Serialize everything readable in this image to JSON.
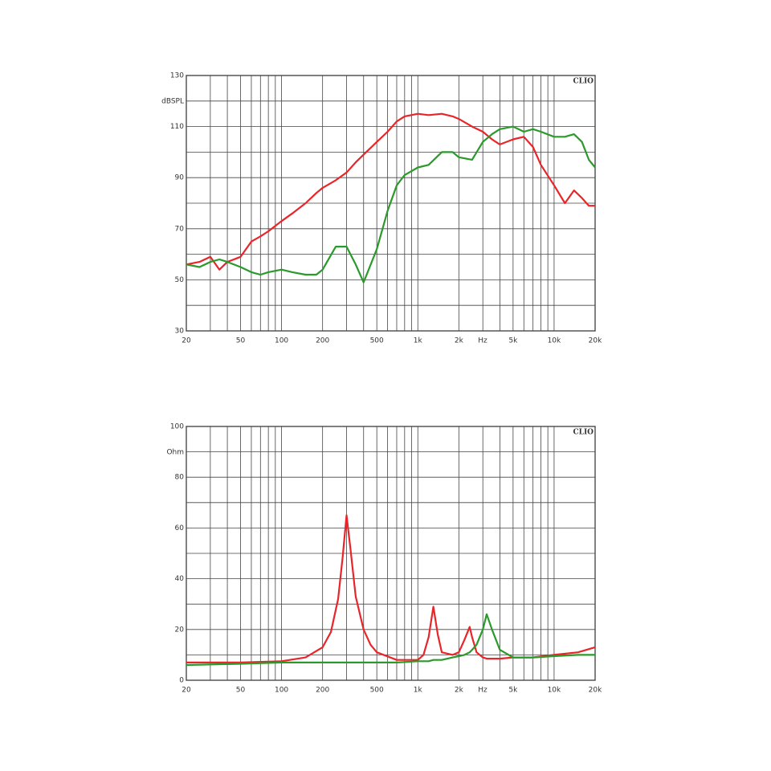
{
  "chart_data": [
    {
      "type": "line",
      "ylabel": "dBSPL",
      "xlabel": "Hz",
      "brand": "CLIO",
      "xscale": "log",
      "grid": true,
      "xlim": [
        20,
        20000
      ],
      "ylim": [
        30,
        130
      ],
      "xticks": [
        20,
        50,
        100,
        200,
        500,
        {
          "value": 1000,
          "label": "1k"
        },
        {
          "value": 2000,
          "label": "2k"
        },
        {
          "value": 5000,
          "label": "5k"
        },
        {
          "value": 10000,
          "label": "10k"
        },
        {
          "value": 20000,
          "label": "20k"
        }
      ],
      "xminor": [
        30,
        40,
        60,
        70,
        80,
        90,
        300,
        400,
        600,
        700,
        800,
        900,
        3000,
        4000,
        6000,
        7000,
        8000,
        9000
      ],
      "yticks": [
        30,
        50,
        70,
        90,
        110,
        130
      ],
      "yminor": [
        40,
        60,
        80,
        100,
        120
      ],
      "x": [
        20,
        25,
        30,
        35,
        40,
        50,
        60,
        70,
        80,
        100,
        120,
        150,
        180,
        200,
        250,
        300,
        350,
        400,
        500,
        600,
        700,
        800,
        1000,
        1200,
        1500,
        1800,
        2000,
        2500,
        3000,
        3500,
        4000,
        5000,
        6000,
        7000,
        8000,
        10000,
        12000,
        14000,
        16000,
        18000,
        20000
      ],
      "series": [
        {
          "color": "#e8262a",
          "values": [
            56,
            57,
            59,
            54,
            57,
            59,
            65,
            67,
            69,
            73,
            76,
            80,
            84,
            86,
            89,
            92,
            96,
            99,
            104,
            108,
            112,
            114,
            115,
            114.5,
            115,
            114,
            113,
            110,
            108,
            105,
            103,
            105,
            106,
            102,
            95,
            87,
            80,
            85,
            82,
            79,
            79
          ]
        },
        {
          "color": "#2a9a2a",
          "values": [
            56,
            55,
            57,
            58,
            57,
            55,
            53,
            52,
            53,
            54,
            53,
            52,
            52,
            54,
            63,
            63,
            56,
            49,
            62,
            77,
            87,
            91,
            94,
            95,
            100,
            100,
            98,
            97,
            104,
            107,
            109,
            110,
            108,
            109,
            108,
            106,
            106,
            107,
            104,
            97,
            94
          ]
        }
      ]
    },
    {
      "type": "line",
      "ylabel": "Ohm",
      "xlabel": "Hz",
      "brand": "CLIO",
      "xscale": "log",
      "grid": true,
      "xlim": [
        20,
        20000
      ],
      "ylim": [
        0,
        100
      ],
      "xticks": [
        20,
        50,
        100,
        200,
        500,
        {
          "value": 1000,
          "label": "1k"
        },
        {
          "value": 2000,
          "label": "2k"
        },
        {
          "value": 5000,
          "label": "5k"
        },
        {
          "value": 10000,
          "label": "10k"
        },
        {
          "value": 20000,
          "label": "20k"
        }
      ],
      "xminor": [
        30,
        40,
        60,
        70,
        80,
        90,
        300,
        400,
        600,
        700,
        800,
        900,
        3000,
        4000,
        6000,
        7000,
        8000,
        9000
      ],
      "yticks": [
        0,
        20,
        40,
        60,
        80,
        100
      ],
      "yminor": [
        10,
        30,
        50,
        70,
        90
      ],
      "x": [
        20,
        50,
        100,
        150,
        200,
        230,
        260,
        280,
        300,
        320,
        350,
        400,
        450,
        500,
        700,
        1000,
        1100,
        1200,
        1300,
        1400,
        1500,
        1800,
        2000,
        2200,
        2400,
        2500,
        2700,
        3000,
        3200,
        3500,
        4000,
        5000,
        7000,
        10000,
        15000,
        20000
      ],
      "series": [
        {
          "color": "#e8262a",
          "values": [
            7,
            7,
            7.5,
            9,
            13,
            19,
            32,
            48,
            65,
            52,
            33,
            20,
            14,
            11,
            8,
            8,
            10,
            17,
            29,
            18,
            11,
            10,
            11,
            16,
            21,
            17,
            11,
            9,
            8.5,
            8.5,
            8.5,
            9,
            9,
            10,
            11,
            13
          ]
        },
        {
          "color": "#2a9a2a",
          "values": [
            6,
            6.5,
            7,
            7,
            7,
            7,
            7,
            7,
            7,
            7,
            7,
            7,
            7,
            7,
            7,
            7.5,
            7.5,
            7.5,
            8,
            8,
            8,
            9,
            9.5,
            10,
            11,
            12,
            14,
            20,
            26,
            20,
            12,
            9,
            9,
            9.5,
            10,
            10
          ]
        }
      ]
    }
  ]
}
